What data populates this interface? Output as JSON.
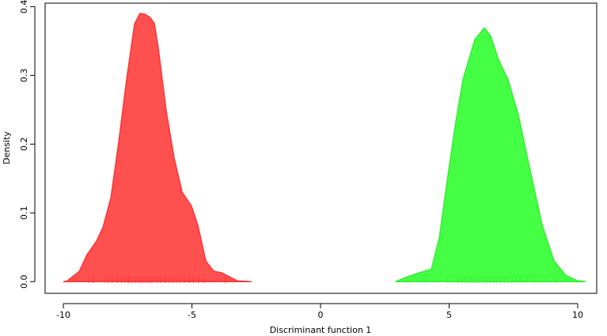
{
  "chart_data": {
    "type": "density",
    "xlabel": "Discriminant function 1",
    "ylabel": "Density",
    "xlim": [
      -10.71,
      10.74
    ],
    "ylim": [
      -0.017,
      0.405
    ],
    "xticks": [
      -10,
      -5,
      0,
      5,
      10
    ],
    "yticks": [
      {
        "value": 0,
        "label": "0.0"
      },
      0.1,
      0.2,
      0.3,
      0.4
    ],
    "series": [
      {
        "color": "#ff5050",
        "stroke": "#ff3333",
        "x": [
          -10,
          -9.85,
          -9.38,
          -9.08,
          -8.71,
          -8.46,
          -8.15,
          -7.85,
          -7.54,
          -7.23,
          -7.02,
          -6.83,
          -6.62,
          -6.46,
          -6.31,
          -6.0,
          -5.69,
          -5.38,
          -5.02,
          -4.77,
          -4.46,
          -4.15,
          -3.85,
          -3.54,
          -3.23,
          -2.68
        ],
        "values": [
          0,
          0.001,
          0.015,
          0.039,
          0.059,
          0.079,
          0.122,
          0.202,
          0.294,
          0.375,
          0.39,
          0.389,
          0.384,
          0.375,
          0.34,
          0.248,
          0.179,
          0.13,
          0.11,
          0.082,
          0.03,
          0.015,
          0.013,
          0.007,
          0.001,
          0
        ],
        "rug": [
          -9.0,
          -8.85,
          -8.4,
          -8.25,
          -8.1,
          -7.9,
          -7.75,
          -7.6,
          -7.5,
          -7.45,
          -7.35,
          -7.2,
          -7.1,
          -7.0,
          -6.9,
          -6.8,
          -6.7,
          -6.6,
          -6.5,
          -6.35,
          -6.2,
          -6.05,
          -5.9,
          -5.75,
          -5.6,
          -5.45,
          -5.3,
          -5.1,
          -4.95,
          -4.75,
          -4.55,
          -3.7
        ]
      },
      {
        "color": "#44ff44",
        "stroke": "#33ee33",
        "x": [
          2.92,
          3.38,
          3.85,
          4.31,
          4.62,
          4.92,
          5.23,
          5.54,
          6.0,
          6.37,
          6.62,
          6.92,
          7.29,
          7.69,
          8.15,
          8.62,
          9.08,
          9.54,
          10.0,
          10.31
        ],
        "values": [
          0,
          0.007,
          0.013,
          0.018,
          0.064,
          0.145,
          0.225,
          0.294,
          0.352,
          0.369,
          0.357,
          0.323,
          0.294,
          0.243,
          0.162,
          0.082,
          0.03,
          0.009,
          0.001,
          0
        ],
        "rug": [
          4.1,
          4.95,
          5.2,
          5.35,
          5.5,
          5.6,
          5.75,
          5.85,
          5.95,
          6.05,
          6.15,
          6.3,
          6.4,
          6.5,
          6.6,
          6.75,
          6.85,
          7.0,
          7.15,
          7.3,
          7.45,
          7.6,
          7.8,
          8.0,
          8.3,
          8.55,
          8.7,
          9.2
        ]
      }
    ]
  }
}
